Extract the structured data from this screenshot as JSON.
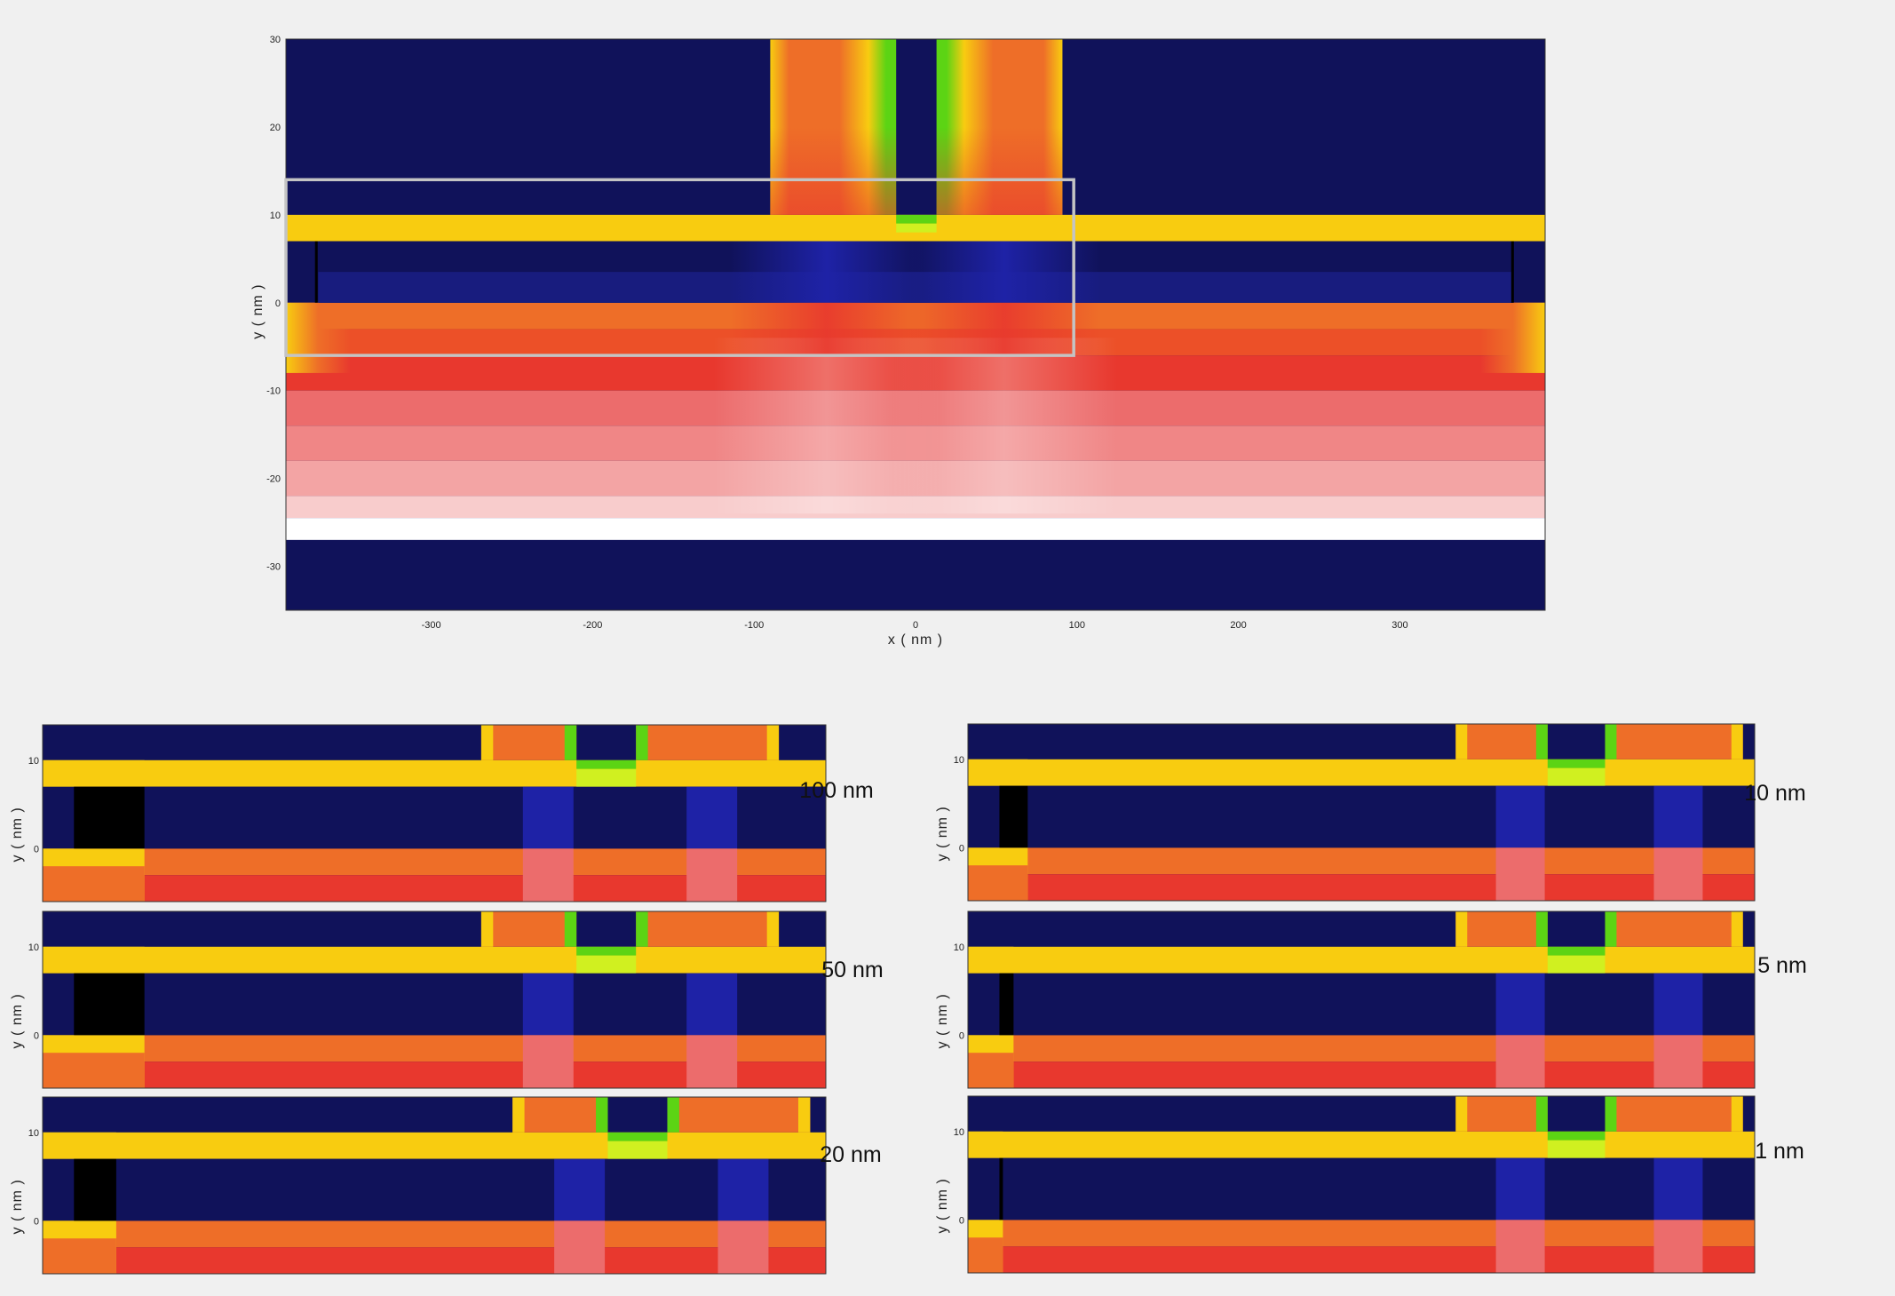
{
  "colors": {
    "navy": "#10125a",
    "deep_blue": "#1e22a6",
    "mid_blue": "#181c7e",
    "yellow": "#f8cc10",
    "orange": "#ee6e28",
    "red": "#e8382e",
    "light_red": "#ec6c6c",
    "pink": "#f3a4a4",
    "pale_pink": "#f8cccc",
    "green": "#5cd414",
    "yellowgreen": "#d0f020",
    "black": "#000000",
    "white": "#ffffff",
    "box": "#c4c4c4"
  },
  "chart_data": [
    {
      "type": "heatmap",
      "title": "",
      "xlabel": "x ( nm )",
      "ylabel": "y ( nm )",
      "xlim": [
        -390,
        390
      ],
      "ylim": [
        -35,
        30
      ],
      "xticks": [
        -300,
        -200,
        -100,
        0,
        100,
        200,
        300
      ],
      "yticks": [
        30,
        20,
        10,
        0,
        -10,
        -20,
        -30
      ],
      "zoom_box": {
        "x": [
          -390,
          98
        ],
        "y": [
          -6,
          14
        ]
      },
      "colorbar": false
    },
    {
      "type": "heatmap",
      "label": "100 nm",
      "ylabel": "y ( nm )",
      "yticks": [
        10,
        0
      ]
    },
    {
      "type": "heatmap",
      "label": "50 nm",
      "ylabel": "y ( nm )",
      "yticks": [
        10,
        0
      ]
    },
    {
      "type": "heatmap",
      "label": "20 nm",
      "ylabel": "y ( nm )",
      "yticks": [
        10,
        0
      ]
    },
    {
      "type": "heatmap",
      "label": "10 nm",
      "ylabel": "y ( nm )",
      "yticks": [
        10,
        0
      ]
    },
    {
      "type": "heatmap",
      "label": "5 nm",
      "ylabel": "y ( nm )",
      "yticks": [
        10,
        0
      ]
    },
    {
      "type": "heatmap",
      "label": "1 nm",
      "ylabel": "y ( nm )",
      "yticks": [
        10,
        0
      ]
    }
  ]
}
